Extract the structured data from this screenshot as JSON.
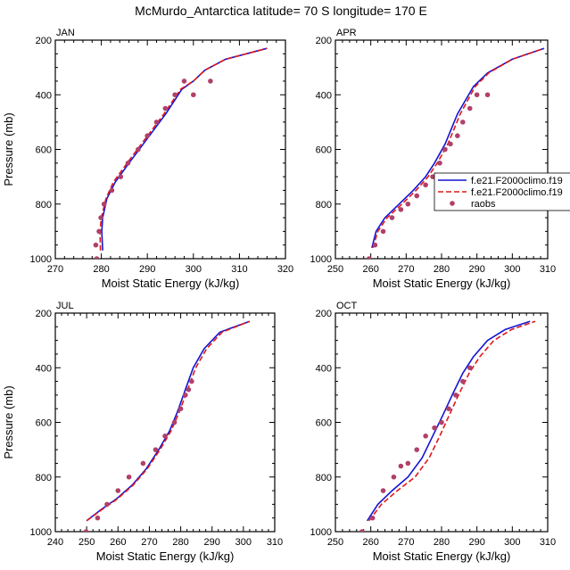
{
  "title": "McMurdo_Antarctica  latitude= 70 S longitude= 170 E",
  "colors": {
    "model1": "#1414d2",
    "model2": "#e01818",
    "obs": "#b0406a"
  },
  "legend": {
    "placement": "right of APR panel",
    "entries": [
      {
        "label": "f.e21.F2000climo.f19",
        "style": "solid-line",
        "color": "#1414d2"
      },
      {
        "label": "f.e21.F2000climo.f19",
        "style": "dashed-line",
        "color": "#e01818"
      },
      {
        "label": "raobs",
        "style": "marker",
        "color": "#b0406a"
      }
    ]
  },
  "chart_data": [
    {
      "type": "line",
      "panel": "JAN",
      "xlabel": "Moist Static Energy (kJ/kg)",
      "ylabel": "Pressure (mb)",
      "xlim": [
        270,
        320
      ],
      "ylim": [
        1000,
        200
      ],
      "y_inverted": true,
      "xticks": [
        270,
        280,
        290,
        300,
        310,
        320
      ],
      "yticks": [
        200,
        400,
        600,
        800,
        1000
      ],
      "series": [
        {
          "name": "f.e21.F2000climo.f19",
          "style": "solid",
          "x": [
            280.3,
            280.1,
            280.3,
            281.2,
            283.0,
            286.0,
            290.0,
            294.0,
            297.5,
            300.0,
            302.5,
            307.0,
            316.0
          ],
          "y": [
            970,
            900,
            850,
            780,
            720,
            650,
            560,
            470,
            380,
            350,
            310,
            270,
            230
          ]
        },
        {
          "name": "f.e21.F2000climo.f19",
          "style": "dashed",
          "x": [
            279.8,
            279.7,
            280.0,
            281.0,
            282.6,
            285.6,
            289.6,
            293.6,
            297.2,
            300.0,
            302.5,
            307.0,
            316.0
          ],
          "y": [
            970,
            900,
            850,
            780,
            720,
            650,
            560,
            470,
            380,
            350,
            310,
            270,
            230
          ]
        },
        {
          "name": "raobs",
          "style": "marker",
          "x": [
            279.0,
            278.8,
            279.5,
            279.9,
            280.6,
            282.3,
            284.2,
            285.8,
            288.0,
            290.0,
            292.0,
            293.9,
            296.0,
            298.0,
            300.0,
            303.7
          ],
          "y": [
            1000,
            950,
            900,
            850,
            800,
            750,
            700,
            650,
            600,
            550,
            500,
            450,
            400,
            350,
            400,
            350
          ]
        }
      ]
    },
    {
      "type": "line",
      "panel": "APR",
      "xlabel": "Moist Static Energy (kJ/kg)",
      "ylabel": "Pressure (mb)",
      "xlim": [
        250,
        310
      ],
      "ylim": [
        1000,
        200
      ],
      "y_inverted": true,
      "xticks": [
        250,
        260,
        270,
        280,
        290,
        300,
        310
      ],
      "yticks": [
        200,
        400,
        600,
        800,
        1000
      ],
      "series": [
        {
          "name": "f.e21.F2000climo.f19",
          "style": "solid",
          "x": [
            260.3,
            261.5,
            264.0,
            268.0,
            272.0,
            275.5,
            278.0,
            281.0,
            284.5,
            289.0,
            293.0,
            300.0,
            309.0
          ],
          "y": [
            960,
            900,
            850,
            800,
            750,
            700,
            650,
            580,
            470,
            370,
            320,
            270,
            230
          ]
        },
        {
          "name": "f.e21.F2000climo.f19",
          "style": "dashed",
          "x": [
            260.6,
            262.0,
            264.6,
            268.8,
            272.8,
            276.2,
            278.8,
            281.8,
            285.3,
            289.5,
            293.3,
            300.0,
            309.0
          ],
          "y": [
            960,
            900,
            850,
            800,
            750,
            700,
            650,
            580,
            470,
            370,
            320,
            270,
            230
          ]
        },
        {
          "name": "raobs",
          "style": "marker",
          "x": [
            259.5,
            261.2,
            263.5,
            266.0,
            268.5,
            270.5,
            273.0,
            275.5,
            277.5,
            279.5,
            281.0,
            282.5,
            284.5,
            286.0,
            288.0,
            290.0,
            293.0
          ],
          "y": [
            1000,
            950,
            900,
            850,
            820,
            800,
            770,
            730,
            700,
            650,
            600,
            580,
            550,
            500,
            450,
            400,
            400
          ]
        }
      ]
    },
    {
      "type": "line",
      "panel": "JUL",
      "xlabel": "Moist Static Energy (kJ/kg)",
      "ylabel": "Pressure (mb)",
      "xlim": [
        240,
        310
      ],
      "ylim": [
        1000,
        200
      ],
      "y_inverted": true,
      "xticks": [
        240,
        250,
        260,
        270,
        280,
        290,
        300,
        310
      ],
      "yticks": [
        200,
        400,
        600,
        800,
        1000
      ],
      "series": [
        {
          "name": "f.e21.F2000climo.f19",
          "style": "solid",
          "x": [
            250.0,
            254.5,
            259.5,
            264.5,
            269.0,
            273.0,
            276.5,
            279.0,
            281.5,
            284.0,
            287.5,
            292.5,
            302.0
          ],
          "y": [
            960,
            920,
            880,
            830,
            770,
            700,
            630,
            560,
            480,
            400,
            330,
            270,
            230
          ]
        },
        {
          "name": "f.e21.F2000climo.f19",
          "style": "dashed",
          "x": [
            250.0,
            254.8,
            259.8,
            264.8,
            269.3,
            273.4,
            277.0,
            279.6,
            282.2,
            284.8,
            288.3,
            293.2,
            302.0
          ],
          "y": [
            960,
            920,
            880,
            830,
            770,
            700,
            630,
            560,
            480,
            400,
            330,
            270,
            230
          ]
        },
        {
          "name": "raobs",
          "style": "marker",
          "x": [
            249.8,
            253.5,
            256.5,
            260.0,
            263.5,
            268.0,
            272.0,
            275.0,
            278.0,
            280.0,
            281.5,
            282.5,
            283.5
          ],
          "y": [
            1000,
            950,
            900,
            850,
            800,
            750,
            700,
            650,
            600,
            550,
            500,
            480,
            450
          ]
        }
      ]
    },
    {
      "type": "line",
      "panel": "OCT",
      "xlabel": "Moist Static Energy (kJ/kg)",
      "ylabel": "Pressure (mb)",
      "xlim": [
        250,
        310
      ],
      "ylim": [
        1000,
        200
      ],
      "y_inverted": true,
      "xticks": [
        250,
        260,
        270,
        280,
        290,
        300,
        310
      ],
      "yticks": [
        200,
        400,
        600,
        800,
        1000
      ],
      "series": [
        {
          "name": "f.e21.F2000climo.f19",
          "style": "solid",
          "x": [
            259.0,
            262.0,
            266.0,
            270.5,
            274.5,
            277.5,
            280.5,
            283.0,
            286.0,
            289.0,
            293.0,
            298.0,
            305.0
          ],
          "y": [
            960,
            900,
            850,
            800,
            730,
            650,
            570,
            500,
            420,
            360,
            300,
            260,
            230
          ]
        },
        {
          "name": "f.e21.F2000climo.f19",
          "style": "dashed",
          "x": [
            259.5,
            263.0,
            267.5,
            272.5,
            276.5,
            279.5,
            282.3,
            284.8,
            287.8,
            290.8,
            294.8,
            299.8,
            306.5
          ],
          "y": [
            960,
            900,
            850,
            800,
            730,
            650,
            570,
            500,
            420,
            360,
            300,
            260,
            230
          ]
        },
        {
          "name": "raobs",
          "style": "marker",
          "x": [
            257.5,
            260.5,
            263.5,
            266.5,
            268.5,
            270.5,
            273.0,
            275.5,
            278.0,
            280.0,
            282.0,
            284.0,
            286.0,
            288.0
          ],
          "y": [
            1000,
            950,
            850,
            800,
            760,
            750,
            700,
            650,
            620,
            600,
            550,
            500,
            450,
            400
          ]
        }
      ]
    }
  ]
}
